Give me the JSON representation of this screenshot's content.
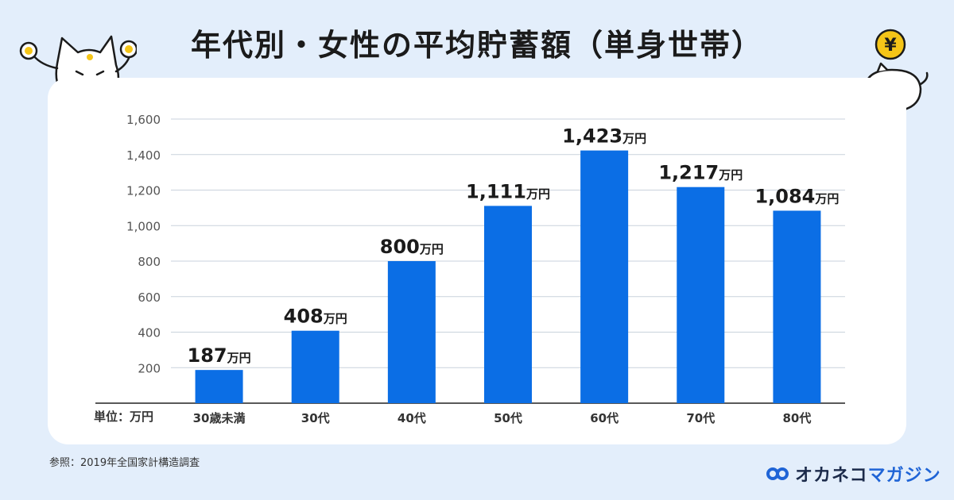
{
  "title": "年代別・女性の平均貯蓄額（単身世帯）",
  "source": "参照：2019年全国家計構造調査",
  "logo": {
    "part1": "オカネコ",
    "part2": "マガジン"
  },
  "colors": {
    "bar": "#0b6ee5",
    "background": "#e3eefb",
    "card": "#ffffff"
  },
  "chart_data": {
    "type": "bar",
    "categories": [
      "30歳未満",
      "30代",
      "40代",
      "50代",
      "60代",
      "70代",
      "80代"
    ],
    "values": [
      187,
      408,
      800,
      1111,
      1423,
      1217,
      1084
    ],
    "data_labels": [
      "187",
      "408",
      "800",
      "1,111",
      "1,423",
      "1,217",
      "1,084"
    ],
    "data_label_unit": "万円",
    "unit_label": "単位：万円",
    "yticks": [
      200,
      400,
      600,
      800,
      1000,
      1200,
      1400,
      1600
    ],
    "ytick_labels": [
      "200",
      "400",
      "600",
      "800",
      "1,000",
      "1,200",
      "1,400",
      "1,600"
    ],
    "ylim": [
      0,
      1600
    ],
    "grid": true,
    "legend": "none"
  }
}
